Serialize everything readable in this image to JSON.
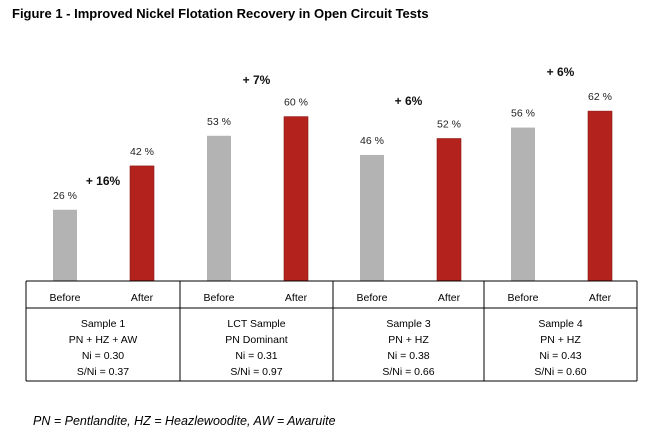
{
  "title": "Figure 1 - Improved Nickel Flotation Recovery in Open Circuit Tests",
  "footnote": "PN = Pentlandite, HZ = Heazlewoodite, AW = Awaruite",
  "colors": {
    "before": "#b3b3b3",
    "after": "#b3221c",
    "axis": "#000000"
  },
  "chart_data": {
    "type": "bar",
    "title": "Figure 1 - Improved Nickel Flotation Recovery in Open Circuit Tests",
    "ylim": [
      0,
      70
    ],
    "grid": false,
    "categories": [
      "Before",
      "After"
    ],
    "groups": [
      {
        "before": 26,
        "after": 42,
        "before_label": "26 %",
        "after_label": "42 %",
        "gain": "+ 16%",
        "info": [
          "Sample 1",
          "PN + HZ + AW",
          "Ni = 0.30",
          "S/Ni = 0.37"
        ]
      },
      {
        "before": 53,
        "after": 60,
        "before_label": "53 %",
        "after_label": "60 %",
        "gain": "+ 7%",
        "info": [
          "LCT Sample",
          "PN Dominant",
          "Ni = 0.31",
          "S/Ni = 0.97"
        ]
      },
      {
        "before": 46,
        "after": 52,
        "before_label": "46 %",
        "after_label": "52 %",
        "gain": "+ 6%",
        "info": [
          "Sample 3",
          "PN + HZ",
          "Ni = 0.38",
          "S/Ni = 0.66"
        ]
      },
      {
        "before": 56,
        "after": 62,
        "before_label": "56 %",
        "after_label": "62 %",
        "gain": "+ 6%",
        "info": [
          "Sample 4",
          "PN + HZ",
          "Ni = 0.43",
          "S/Ni = 0.60"
        ]
      }
    ]
  }
}
